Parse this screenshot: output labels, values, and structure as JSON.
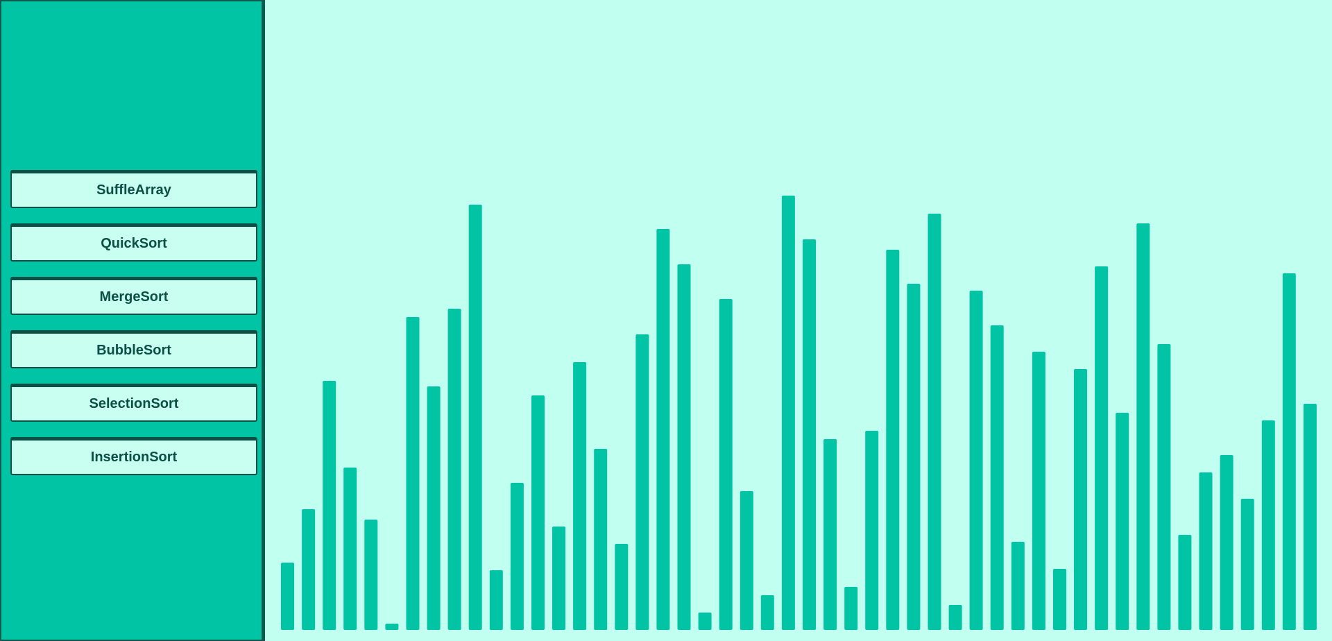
{
  "colors": {
    "sidebar_bg": "#00c4a4",
    "canvas_bg": "#c1fff0",
    "bar": "#00c4a4",
    "button_bg": "#c8fff1",
    "button_text": "#0b4f45"
  },
  "sidebar": {
    "buttons": [
      {
        "label": "SuffleArray"
      },
      {
        "label": "QuickSort"
      },
      {
        "label": "MergeSort"
      },
      {
        "label": "BubbleSort"
      },
      {
        "label": "SelectionSort"
      },
      {
        "label": "InsertionSort"
      }
    ]
  },
  "array": {
    "values": [
      97,
      174,
      359,
      234,
      159,
      9,
      451,
      351,
      463,
      613,
      86,
      212,
      338,
      149,
      386,
      261,
      124,
      426,
      578,
      527,
      25,
      477,
      200,
      50,
      626,
      563,
      275,
      62,
      287,
      548,
      499,
      600,
      36,
      489,
      439,
      127,
      401,
      88,
      376,
      524,
      313,
      586,
      412,
      137,
      227,
      252,
      189,
      302,
      514,
      326
    ]
  }
}
